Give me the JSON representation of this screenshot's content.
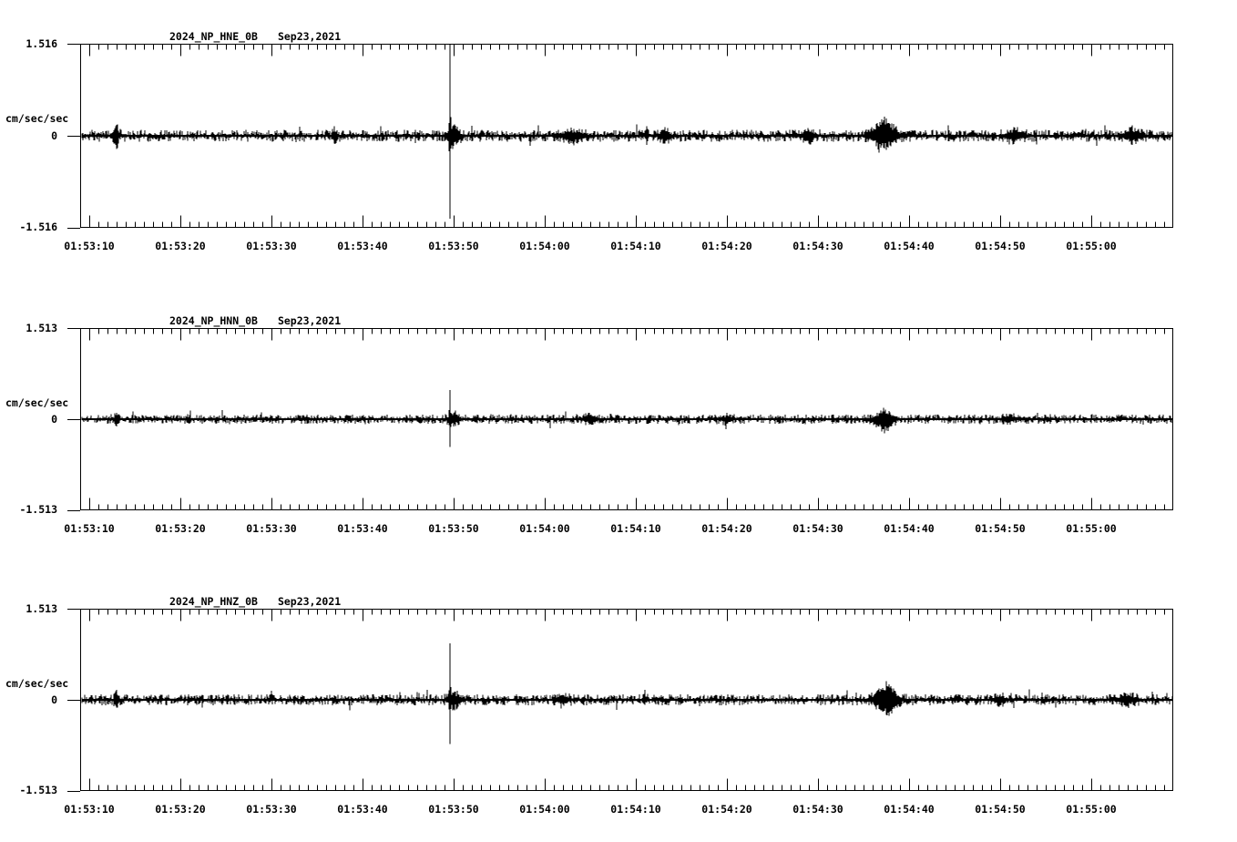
{
  "app": {
    "background_color": "#ffffff",
    "ink_color": "#000000",
    "description": "Three-component strong-motion seismogram display"
  },
  "chart_data": {
    "type": "line",
    "kind": "seismogram",
    "legend": "none",
    "grid": "off",
    "time_axis": {
      "tick_labels": [
        "01:53:10",
        "01:53:20",
        "01:53:30",
        "01:53:40",
        "01:53:50",
        "01:54:00",
        "01:54:10",
        "01:54:20",
        "01:54:30",
        "01:54:40",
        "01:54:50",
        "01:55:00"
      ],
      "major_interval_s": 10,
      "minor_interval_s": 1,
      "start_offset_s": -1,
      "end_offset_s": 119
    },
    "panels": [
      {
        "station": "2024_NP_HNE_0B",
        "date": "Sep23,2021",
        "units": "cm/sec/sec",
        "y_max_label": "1.516",
        "y_zero_label": "0",
        "y_min_label": "-1.516",
        "ylim": [
          -1.516,
          1.516
        ],
        "noise_amp": 0.026,
        "seed": 11,
        "events": [
          {
            "t": 3.0,
            "up": 0.11,
            "down": 0.12,
            "w": 0.18
          },
          {
            "t": 26.9,
            "up": 0.07,
            "down": 0.05,
            "w": 0.15
          },
          {
            "t": 39.6,
            "up": 1.0,
            "down": 0.83,
            "w": 0.05
          },
          {
            "t": 40.0,
            "up": 0.1,
            "down": 0.1,
            "w": 0.45
          },
          {
            "t": 53.0,
            "up": 0.05,
            "down": 0.05,
            "w": 0.8
          },
          {
            "t": 61.2,
            "up": 0.09,
            "down": 0.06,
            "w": 0.12
          },
          {
            "t": 63.2,
            "up": 0.07,
            "down": 0.07,
            "w": 0.3
          },
          {
            "t": 79.0,
            "up": 0.05,
            "down": 0.05,
            "w": 0.5
          },
          {
            "t": 87.3,
            "up": 0.16,
            "down": 0.12,
            "w": 0.9
          },
          {
            "t": 101.5,
            "up": 0.05,
            "down": 0.05,
            "w": 0.6
          },
          {
            "t": 114.5,
            "up": 0.05,
            "down": 0.05,
            "w": 0.7
          }
        ]
      },
      {
        "station": "2024_NP_HNN_0B",
        "date": "Sep23,2021",
        "units": "cm/sec/sec",
        "y_max_label": "1.513",
        "y_zero_label": "0",
        "y_min_label": "-1.513",
        "ylim": [
          -1.513,
          1.513
        ],
        "noise_amp": 0.021,
        "seed": 22,
        "events": [
          {
            "t": 3.0,
            "up": 0.05,
            "down": 0.05,
            "w": 0.18
          },
          {
            "t": 39.6,
            "up": 0.3,
            "down": 0.28,
            "w": 0.05
          },
          {
            "t": 40.0,
            "up": 0.05,
            "down": 0.05,
            "w": 0.4
          },
          {
            "t": 55.0,
            "up": 0.035,
            "down": 0.035,
            "w": 0.5
          },
          {
            "t": 70.0,
            "up": 0.03,
            "down": 0.03,
            "w": 0.4
          },
          {
            "t": 87.3,
            "up": 0.08,
            "down": 0.11,
            "w": 0.7
          },
          {
            "t": 101.0,
            "up": 0.03,
            "down": 0.03,
            "w": 0.5
          }
        ]
      },
      {
        "station": "2024_NP_HNZ_0B",
        "date": "Sep23,2021",
        "units": "cm/sec/sec",
        "y_max_label": "1.513",
        "y_zero_label": "0",
        "y_min_label": "-1.513",
        "ylim": [
          -1.513,
          1.513
        ],
        "noise_amp": 0.024,
        "seed": 33,
        "events": [
          {
            "t": 3.0,
            "up": 0.08,
            "down": 0.07,
            "w": 0.18
          },
          {
            "t": 39.6,
            "up": 0.57,
            "down": 0.45,
            "w": 0.05
          },
          {
            "t": 40.1,
            "up": 0.07,
            "down": 0.07,
            "w": 0.5
          },
          {
            "t": 52.0,
            "up": 0.045,
            "down": 0.04,
            "w": 0.5
          },
          {
            "t": 61.0,
            "up": 0.05,
            "down": 0.04,
            "w": 0.15
          },
          {
            "t": 87.5,
            "up": 0.17,
            "down": 0.14,
            "w": 0.8
          },
          {
            "t": 100.0,
            "up": 0.035,
            "down": 0.035,
            "w": 0.5
          },
          {
            "t": 114.0,
            "up": 0.05,
            "down": 0.04,
            "w": 0.7
          }
        ]
      }
    ]
  }
}
